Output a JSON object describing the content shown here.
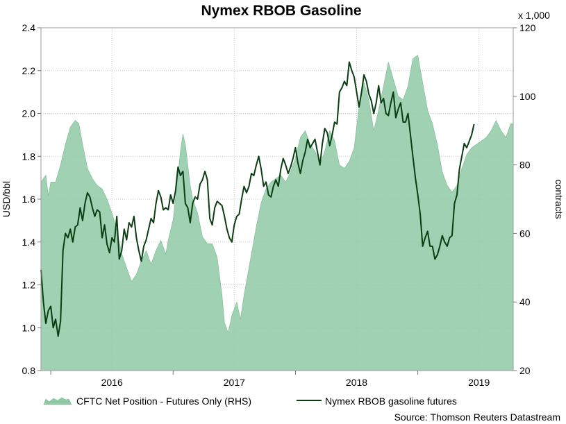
{
  "chart_data": {
    "type": "line",
    "title": "Nymex RBOB Gasoline",
    "ylabel": "USD/bbl",
    "y2label": "contracts",
    "y2_multiplier_label": "x 1,000",
    "source": "Source: Thomson Reuters Datastream",
    "ylim": [
      0.8,
      2.4
    ],
    "y2lim": [
      20,
      120
    ],
    "yticks": [
      "0.8",
      "1.0",
      "1.2",
      "1.4",
      "1.6",
      "1.8",
      "2.0",
      "2.2",
      "2.4"
    ],
    "y2ticks": [
      "20",
      "40",
      "60",
      "80",
      "100",
      "120"
    ],
    "xlim": [
      2015.42,
      2019.28
    ],
    "xticks": [
      {
        "label": "2016",
        "x": 2016.0
      },
      {
        "label": "2017",
        "x": 2017.0
      },
      {
        "label": "2018",
        "x": 2018.0
      },
      {
        "label": "2019",
        "x": 2019.0
      }
    ],
    "grid": true,
    "legend_placement": "bottom",
    "series": [
      {
        "name": "CFTC Net Position - Futures Only (RHS)",
        "type": "area",
        "axis": "right",
        "color": "#8fc9a5",
        "points": [
          [
            2015.42,
            75
          ],
          [
            2015.46,
            77
          ],
          [
            2015.48,
            71
          ],
          [
            2015.5,
            75
          ],
          [
            2015.54,
            75
          ],
          [
            2015.58,
            80
          ],
          [
            2015.62,
            86
          ],
          [
            2015.66,
            91
          ],
          [
            2015.7,
            93
          ],
          [
            2015.73,
            92
          ],
          [
            2015.76,
            86
          ],
          [
            2015.8,
            79
          ],
          [
            2015.84,
            76
          ],
          [
            2015.88,
            74
          ],
          [
            2015.92,
            73
          ],
          [
            2015.96,
            70
          ],
          [
            2016.0,
            66
          ],
          [
            2016.04,
            61
          ],
          [
            2016.08,
            54
          ],
          [
            2016.12,
            50
          ],
          [
            2016.16,
            46
          ],
          [
            2016.2,
            48
          ],
          [
            2016.24,
            52
          ],
          [
            2016.28,
            55
          ],
          [
            2016.32,
            51
          ],
          [
            2016.36,
            55
          ],
          [
            2016.4,
            58
          ],
          [
            2016.44,
            54
          ],
          [
            2016.46,
            58
          ],
          [
            2016.5,
            64
          ],
          [
            2016.54,
            77
          ],
          [
            2016.56,
            84
          ],
          [
            2016.58,
            89
          ],
          [
            2016.6,
            86
          ],
          [
            2016.62,
            80
          ],
          [
            2016.64,
            74
          ],
          [
            2016.66,
            70
          ],
          [
            2016.7,
            66
          ],
          [
            2016.74,
            59
          ],
          [
            2016.78,
            57
          ],
          [
            2016.82,
            57
          ],
          [
            2016.86,
            53
          ],
          [
            2016.9,
            42
          ],
          [
            2016.92,
            34
          ],
          [
            2016.95,
            31
          ],
          [
            2016.98,
            36
          ],
          [
            2017.02,
            40
          ],
          [
            2017.05,
            35
          ],
          [
            2017.08,
            42
          ],
          [
            2017.1,
            46
          ],
          [
            2017.14,
            54
          ],
          [
            2017.18,
            62
          ],
          [
            2017.22,
            69
          ],
          [
            2017.26,
            73
          ],
          [
            2017.3,
            75
          ],
          [
            2017.34,
            76
          ],
          [
            2017.38,
            77
          ],
          [
            2017.42,
            75
          ],
          [
            2017.46,
            78
          ],
          [
            2017.5,
            82
          ],
          [
            2017.54,
            88
          ],
          [
            2017.58,
            90
          ],
          [
            2017.62,
            86
          ],
          [
            2017.66,
            84
          ],
          [
            2017.7,
            80
          ],
          [
            2017.74,
            84
          ],
          [
            2017.78,
            90
          ],
          [
            2017.82,
            87
          ],
          [
            2017.86,
            80
          ],
          [
            2017.9,
            79
          ],
          [
            2017.94,
            81
          ],
          [
            2017.98,
            85
          ],
          [
            2018.02,
            97
          ],
          [
            2018.06,
            104
          ],
          [
            2018.1,
            99
          ],
          [
            2018.14,
            90
          ],
          [
            2018.18,
            96
          ],
          [
            2018.22,
            103
          ],
          [
            2018.26,
            110
          ],
          [
            2018.3,
            105
          ],
          [
            2018.34,
            100
          ],
          [
            2018.38,
            99
          ],
          [
            2018.42,
            103
          ],
          [
            2018.46,
            111
          ],
          [
            2018.5,
            112
          ],
          [
            2018.54,
            104
          ],
          [
            2018.58,
            96
          ],
          [
            2018.62,
            92
          ],
          [
            2018.66,
            86
          ],
          [
            2018.7,
            78
          ],
          [
            2018.74,
            74
          ],
          [
            2018.78,
            72
          ],
          [
            2018.82,
            74
          ],
          [
            2018.86,
            79
          ],
          [
            2018.9,
            83
          ],
          [
            2018.94,
            85
          ],
          [
            2018.98,
            86
          ],
          [
            2019.02,
            87
          ],
          [
            2019.06,
            88
          ],
          [
            2019.1,
            90
          ],
          [
            2019.14,
            93
          ],
          [
            2019.18,
            90
          ],
          [
            2019.22,
            88
          ],
          [
            2019.26,
            92
          ],
          [
            2019.28,
            92
          ]
        ]
      },
      {
        "name": "Nymex RBOB gasoline futures",
        "type": "line",
        "axis": "left",
        "color": "#0b3d12",
        "points": [
          [
            2015.42,
            1.27
          ],
          [
            2015.44,
            1.12
          ],
          [
            2015.46,
            1.02
          ],
          [
            2015.48,
            1.08
          ],
          [
            2015.5,
            1.1
          ],
          [
            2015.52,
            1.0
          ],
          [
            2015.54,
            1.04
          ],
          [
            2015.56,
            0.96
          ],
          [
            2015.58,
            1.03
          ],
          [
            2015.6,
            1.36
          ],
          [
            2015.62,
            1.44
          ],
          [
            2015.64,
            1.42
          ],
          [
            2015.66,
            1.46
          ],
          [
            2015.68,
            1.4
          ],
          [
            2015.7,
            1.47
          ],
          [
            2015.72,
            1.48
          ],
          [
            2015.74,
            1.56
          ],
          [
            2015.76,
            1.5
          ],
          [
            2015.78,
            1.58
          ],
          [
            2015.8,
            1.63
          ],
          [
            2015.82,
            1.61
          ],
          [
            2015.84,
            1.56
          ],
          [
            2015.86,
            1.52
          ],
          [
            2015.88,
            1.55
          ],
          [
            2015.9,
            1.54
          ],
          [
            2015.92,
            1.42
          ],
          [
            2015.94,
            1.48
          ],
          [
            2015.96,
            1.39
          ],
          [
            2015.98,
            1.35
          ],
          [
            2016.0,
            1.42
          ],
          [
            2016.02,
            1.4
          ],
          [
            2016.04,
            1.52
          ],
          [
            2016.06,
            1.32
          ],
          [
            2016.08,
            1.36
          ],
          [
            2016.1,
            1.46
          ],
          [
            2016.12,
            1.41
          ],
          [
            2016.14,
            1.49
          ],
          [
            2016.16,
            1.47
          ],
          [
            2016.18,
            1.52
          ],
          [
            2016.2,
            1.42
          ],
          [
            2016.22,
            1.36
          ],
          [
            2016.24,
            1.31
          ],
          [
            2016.26,
            1.38
          ],
          [
            2016.28,
            1.41
          ],
          [
            2016.3,
            1.46
          ],
          [
            2016.32,
            1.51
          ],
          [
            2016.34,
            1.49
          ],
          [
            2016.36,
            1.58
          ],
          [
            2016.38,
            1.64
          ],
          [
            2016.4,
            1.61
          ],
          [
            2016.42,
            1.55
          ],
          [
            2016.44,
            1.56
          ],
          [
            2016.46,
            1.55
          ],
          [
            2016.48,
            1.62
          ],
          [
            2016.5,
            1.58
          ],
          [
            2016.52,
            1.64
          ],
          [
            2016.54,
            1.75
          ],
          [
            2016.56,
            1.71
          ],
          [
            2016.58,
            1.73
          ],
          [
            2016.6,
            1.58
          ],
          [
            2016.62,
            1.56
          ],
          [
            2016.64,
            1.49
          ],
          [
            2016.66,
            1.58
          ],
          [
            2016.68,
            1.61
          ],
          [
            2016.7,
            1.6
          ],
          [
            2016.72,
            1.67
          ],
          [
            2016.74,
            1.69
          ],
          [
            2016.76,
            1.73
          ],
          [
            2016.78,
            1.69
          ],
          [
            2016.8,
            1.51
          ],
          [
            2016.82,
            1.48
          ],
          [
            2016.84,
            1.56
          ],
          [
            2016.86,
            1.59
          ],
          [
            2016.88,
            1.58
          ],
          [
            2016.9,
            1.57
          ],
          [
            2016.92,
            1.52
          ],
          [
            2016.94,
            1.46
          ],
          [
            2016.96,
            1.42
          ],
          [
            2016.98,
            1.4
          ],
          [
            2017.0,
            1.48
          ],
          [
            2017.02,
            1.52
          ],
          [
            2017.04,
            1.53
          ],
          [
            2017.06,
            1.6
          ],
          [
            2017.08,
            1.66
          ],
          [
            2017.1,
            1.63
          ],
          [
            2017.12,
            1.66
          ],
          [
            2017.14,
            1.72
          ],
          [
            2017.16,
            1.71
          ],
          [
            2017.18,
            1.76
          ],
          [
            2017.2,
            1.8
          ],
          [
            2017.22,
            1.74
          ],
          [
            2017.24,
            1.66
          ],
          [
            2017.26,
            1.68
          ],
          [
            2017.28,
            1.62
          ],
          [
            2017.3,
            1.61
          ],
          [
            2017.32,
            1.66
          ],
          [
            2017.34,
            1.69
          ],
          [
            2017.36,
            1.66
          ],
          [
            2017.38,
            1.74
          ],
          [
            2017.4,
            1.79
          ],
          [
            2017.42,
            1.76
          ],
          [
            2017.44,
            1.72
          ],
          [
            2017.46,
            1.75
          ],
          [
            2017.48,
            1.79
          ],
          [
            2017.5,
            1.84
          ],
          [
            2017.52,
            1.77
          ],
          [
            2017.54,
            1.72
          ],
          [
            2017.56,
            1.78
          ],
          [
            2017.58,
            1.82
          ],
          [
            2017.6,
            1.88
          ],
          [
            2017.62,
            1.84
          ],
          [
            2017.64,
            1.86
          ],
          [
            2017.66,
            1.88
          ],
          [
            2017.68,
            1.82
          ],
          [
            2017.7,
            1.76
          ],
          [
            2017.72,
            1.86
          ],
          [
            2017.74,
            1.93
          ],
          [
            2017.76,
            1.91
          ],
          [
            2017.78,
            1.85
          ],
          [
            2017.8,
            1.9
          ],
          [
            2017.82,
            1.96
          ],
          [
            2017.84,
            1.95
          ],
          [
            2017.86,
            2.1
          ],
          [
            2017.88,
            2.12
          ],
          [
            2017.9,
            2.15
          ],
          [
            2017.92,
            2.13
          ],
          [
            2017.94,
            2.24
          ],
          [
            2017.96,
            2.2
          ],
          [
            2017.98,
            2.17
          ],
          [
            2018.0,
            2.1
          ],
          [
            2018.02,
            2.03
          ],
          [
            2018.04,
            2.1
          ],
          [
            2018.06,
            2.18
          ],
          [
            2018.08,
            2.15
          ],
          [
            2018.1,
            2.09
          ],
          [
            2018.12,
            2.06
          ],
          [
            2018.14,
            2.0
          ],
          [
            2018.16,
            2.05
          ],
          [
            2018.18,
            2.13
          ],
          [
            2018.2,
            2.05
          ],
          [
            2018.22,
            2.07
          ],
          [
            2018.24,
            2.0
          ],
          [
            2018.26,
            1.99
          ],
          [
            2018.28,
            2.05
          ],
          [
            2018.3,
            2.1
          ],
          [
            2018.32,
            1.98
          ],
          [
            2018.34,
            2.02
          ],
          [
            2018.36,
            2.05
          ],
          [
            2018.38,
            1.96
          ],
          [
            2018.4,
            1.96
          ],
          [
            2018.42,
            2.0
          ],
          [
            2018.44,
            1.9
          ],
          [
            2018.46,
            1.8
          ],
          [
            2018.48,
            1.7
          ],
          [
            2018.5,
            1.62
          ],
          [
            2018.52,
            1.53
          ],
          [
            2018.54,
            1.38
          ],
          [
            2018.56,
            1.42
          ],
          [
            2018.58,
            1.45
          ],
          [
            2018.6,
            1.38
          ],
          [
            2018.62,
            1.38
          ],
          [
            2018.64,
            1.32
          ],
          [
            2018.66,
            1.34
          ],
          [
            2018.68,
            1.38
          ],
          [
            2018.7,
            1.43
          ],
          [
            2018.72,
            1.4
          ],
          [
            2018.74,
            1.38
          ],
          [
            2018.76,
            1.42
          ],
          [
            2018.78,
            1.43
          ],
          [
            2018.8,
            1.58
          ],
          [
            2018.82,
            1.62
          ],
          [
            2018.84,
            1.74
          ],
          [
            2018.86,
            1.8
          ],
          [
            2018.88,
            1.86
          ],
          [
            2018.9,
            1.84
          ],
          [
            2018.92,
            1.87
          ],
          [
            2018.94,
            1.9
          ],
          [
            2018.96,
            1.95
          ]
        ]
      }
    ]
  }
}
